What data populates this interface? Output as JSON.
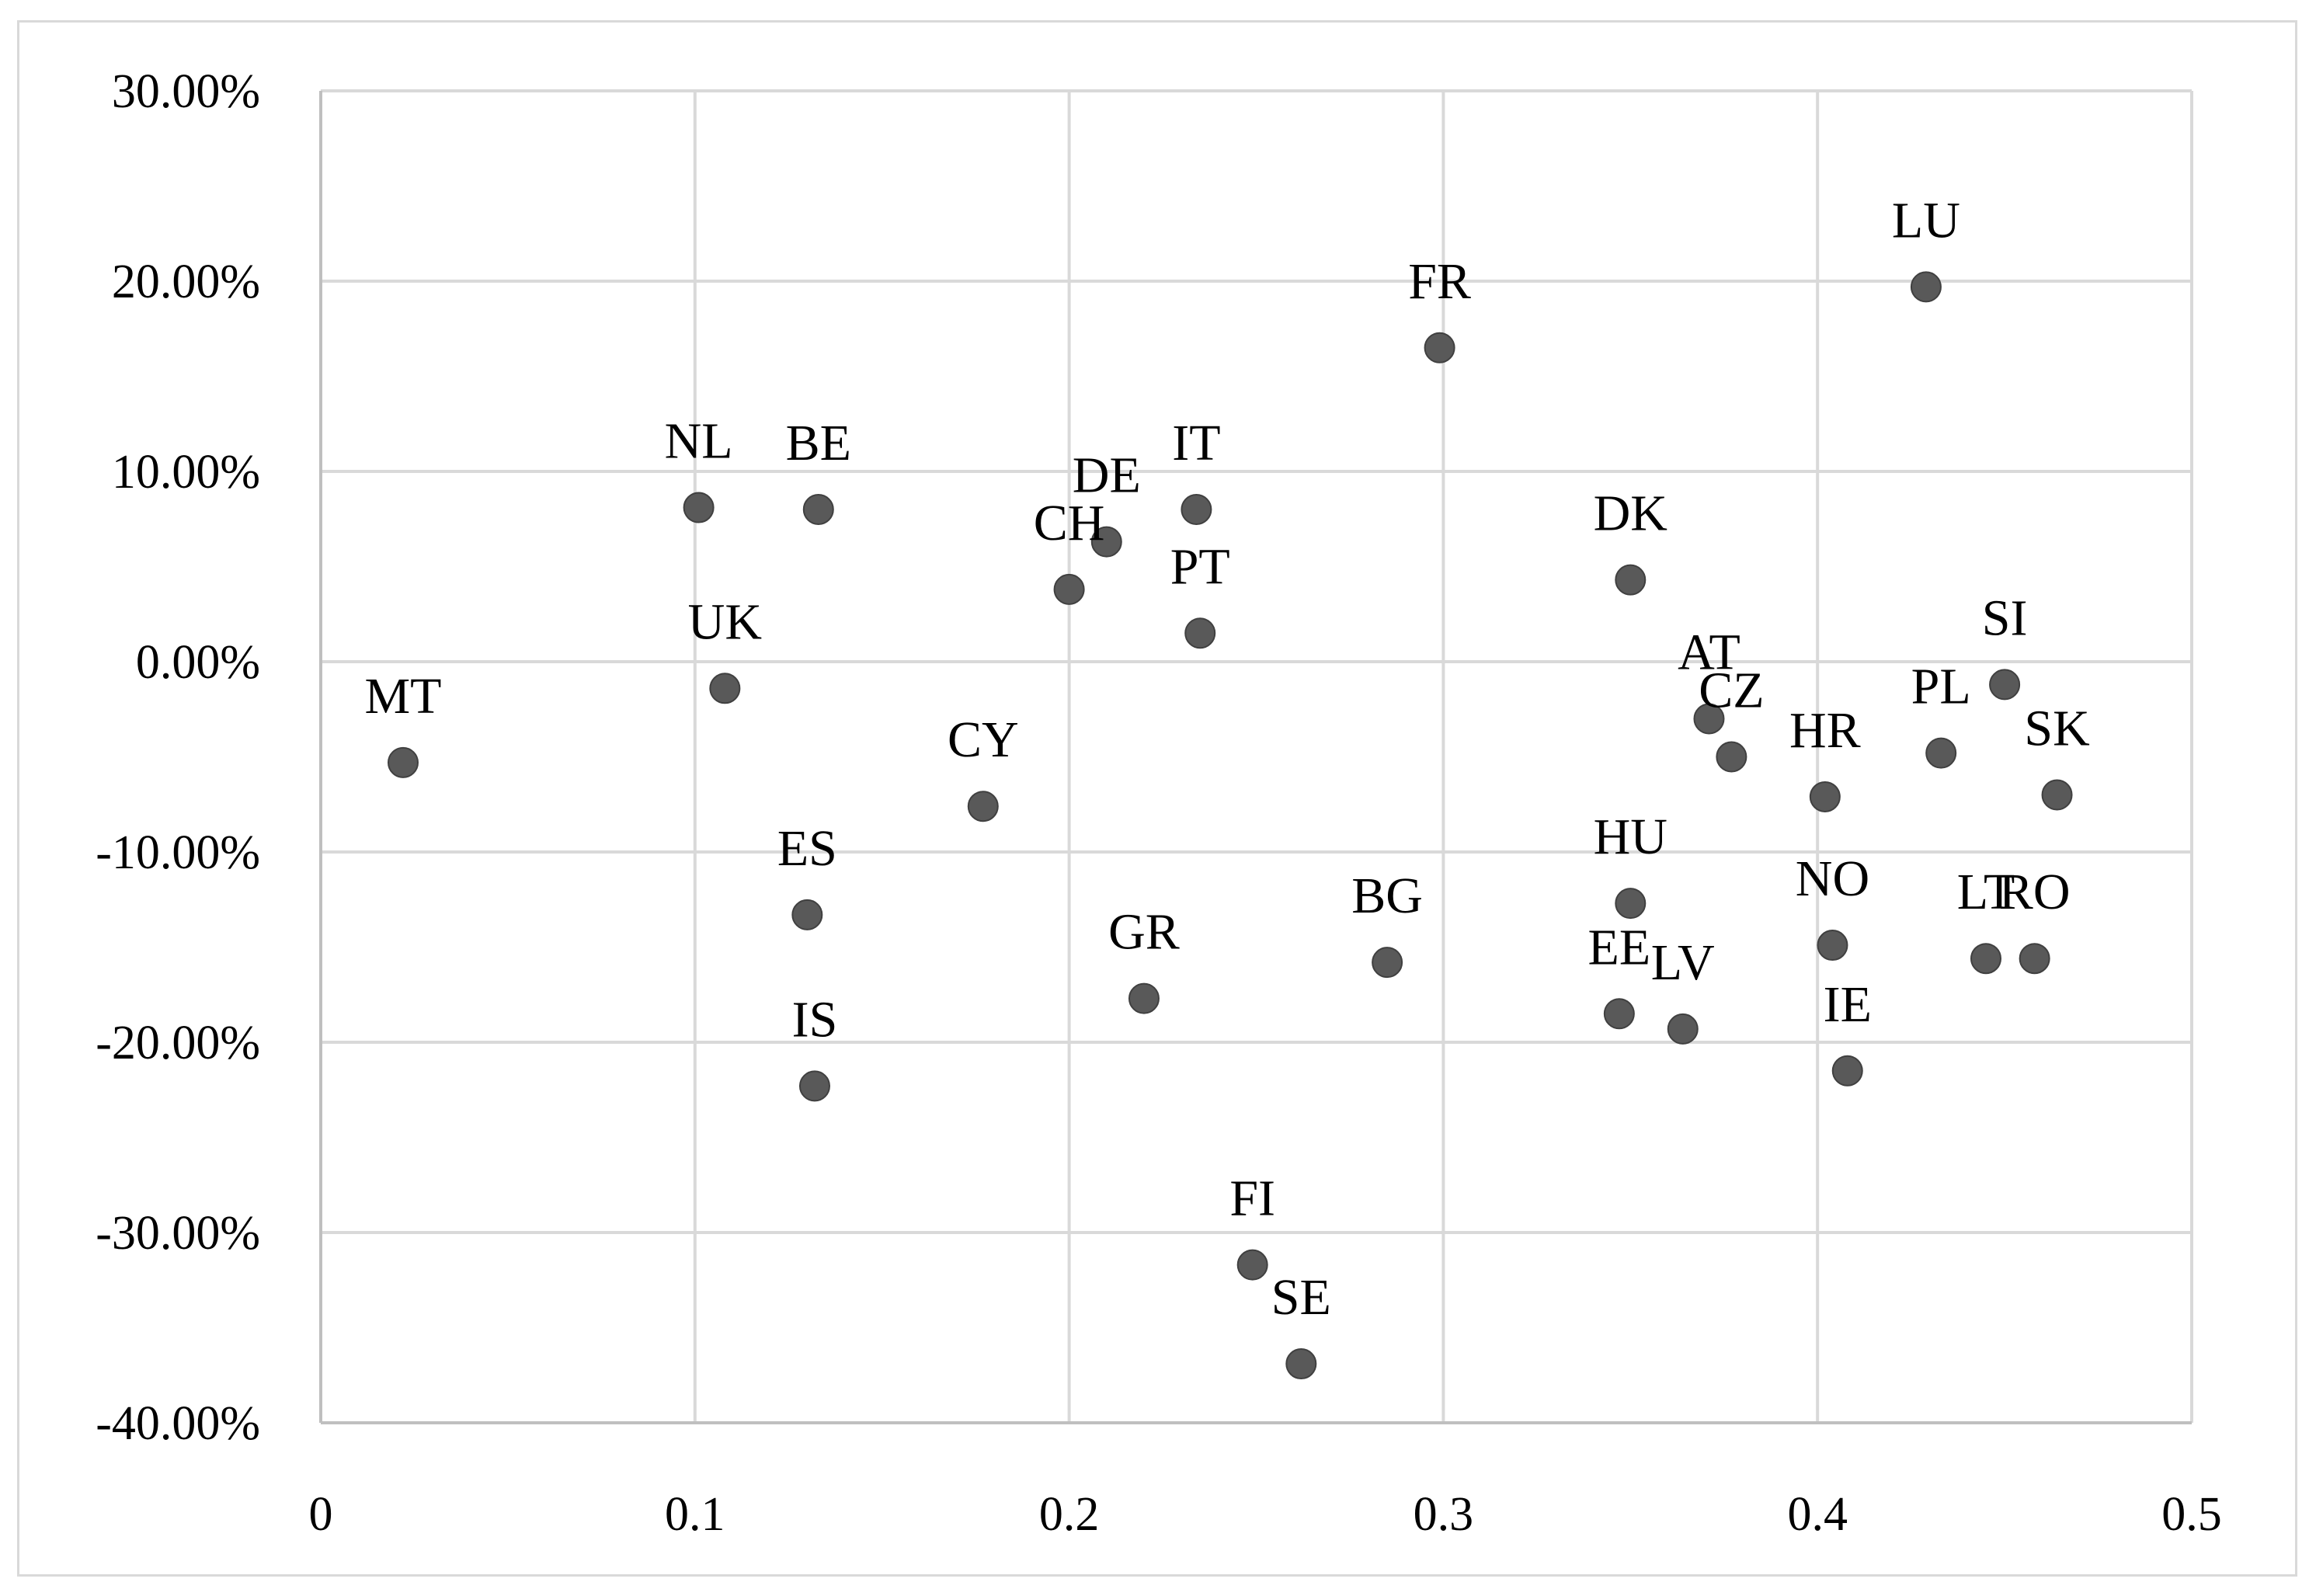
{
  "chart_data": {
    "type": "scatter",
    "title": "",
    "xlabel": "",
    "ylabel": "",
    "xlim": [
      0,
      0.5
    ],
    "ylim": [
      -40,
      30
    ],
    "x_ticks": [
      {
        "value": 0,
        "label": "0"
      },
      {
        "value": 0.1,
        "label": "0.1"
      },
      {
        "value": 0.2,
        "label": "0.2"
      },
      {
        "value": 0.3,
        "label": "0.3"
      },
      {
        "value": 0.4,
        "label": "0.4"
      },
      {
        "value": 0.5,
        "label": "0.5"
      }
    ],
    "y_ticks": [
      {
        "value": 30,
        "label": "30.00%"
      },
      {
        "value": 20,
        "label": "20.00%"
      },
      {
        "value": 10,
        "label": "10.00%"
      },
      {
        "value": 0,
        "label": "0.00%"
      },
      {
        "value": -10,
        "label": "-10.00%"
      },
      {
        "value": -20,
        "label": "-20.00%"
      },
      {
        "value": -30,
        "label": "-30.00%"
      },
      {
        "value": -40,
        "label": "-40.00%"
      }
    ],
    "grid": true,
    "marker_color": "#595959",
    "grid_color": "#d9d9d9",
    "points": [
      {
        "label": "MT",
        "x": 0.022,
        "y": -5.3
      },
      {
        "label": "NL",
        "x": 0.101,
        "y": 8.1
      },
      {
        "label": "UK",
        "x": 0.108,
        "y": -1.4
      },
      {
        "label": "BE",
        "x": 0.133,
        "y": 8.0
      },
      {
        "label": "ES",
        "x": 0.13,
        "y": -13.3
      },
      {
        "label": "IS",
        "x": 0.132,
        "y": -22.3
      },
      {
        "label": "CY",
        "x": 0.177,
        "y": -7.6
      },
      {
        "label": "CH",
        "x": 0.2,
        "y": 3.8
      },
      {
        "label": "DE",
        "x": 0.21,
        "y": 6.3
      },
      {
        "label": "IT",
        "x": 0.234,
        "y": 8.0
      },
      {
        "label": "PT",
        "x": 0.235,
        "y": 1.5
      },
      {
        "label": "GR",
        "x": 0.22,
        "y": -17.7
      },
      {
        "label": "FI",
        "x": 0.249,
        "y": -31.7
      },
      {
        "label": "SE",
        "x": 0.262,
        "y": -36.9
      },
      {
        "label": "BG",
        "x": 0.285,
        "y": -15.8
      },
      {
        "label": "FR",
        "x": 0.299,
        "y": 16.5
      },
      {
        "label": "DK",
        "x": 0.35,
        "y": 4.3
      },
      {
        "label": "HU",
        "x": 0.35,
        "y": -12.7
      },
      {
        "label": "EE",
        "x": 0.347,
        "y": -18.5
      },
      {
        "label": "LV",
        "x": 0.364,
        "y": -19.3
      },
      {
        "label": "AT",
        "x": 0.371,
        "y": -3.0
      },
      {
        "label": "CZ",
        "x": 0.377,
        "y": -5.0
      },
      {
        "label": "HR",
        "x": 0.402,
        "y": -7.1
      },
      {
        "label": "NO",
        "x": 0.404,
        "y": -14.9
      },
      {
        "label": "IE",
        "x": 0.408,
        "y": -21.5
      },
      {
        "label": "LU",
        "x": 0.429,
        "y": 19.7
      },
      {
        "label": "PL",
        "x": 0.433,
        "y": -4.8
      },
      {
        "label": "SI",
        "x": 0.45,
        "y": -1.2
      },
      {
        "label": "LT",
        "x": 0.445,
        "y": -15.6
      },
      {
        "label": "RO",
        "x": 0.458,
        "y": -15.6
      },
      {
        "label": "SK",
        "x": 0.464,
        "y": -7.0
      }
    ]
  }
}
